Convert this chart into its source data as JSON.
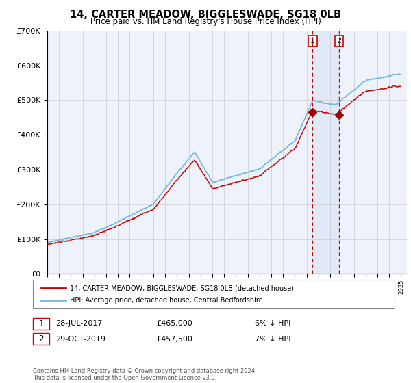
{
  "title": "14, CARTER MEADOW, BIGGLESWADE, SG18 0LB",
  "subtitle": "Price paid vs. HM Land Registry's House Price Index (HPI)",
  "legend_line1": "14, CARTER MEADOW, BIGGLESWADE, SG18 0LB (detached house)",
  "legend_line2": "HPI: Average price, detached house, Central Bedfordshire",
  "footnote": "Contains HM Land Registry data © Crown copyright and database right 2024.\nThis data is licensed under the Open Government Licence v3.0.",
  "sale1_date": "28-JUL-2017",
  "sale1_price": 465000,
  "sale1_note": "6% ↓ HPI",
  "sale2_date": "29-OCT-2019",
  "sale2_price": 457500,
  "sale2_note": "7% ↓ HPI",
  "hpi_color": "#7ab8d9",
  "price_color": "#cc0000",
  "sale_marker_color": "#990000",
  "vline_color": "#cc0000",
  "grid_color": "#cccccc",
  "background_color": "#eef3fb",
  "shade_color": "#c6d9f0",
  "ylim": [
    0,
    700000
  ],
  "yticks": [
    0,
    100000,
    200000,
    300000,
    400000,
    500000,
    600000,
    700000
  ]
}
